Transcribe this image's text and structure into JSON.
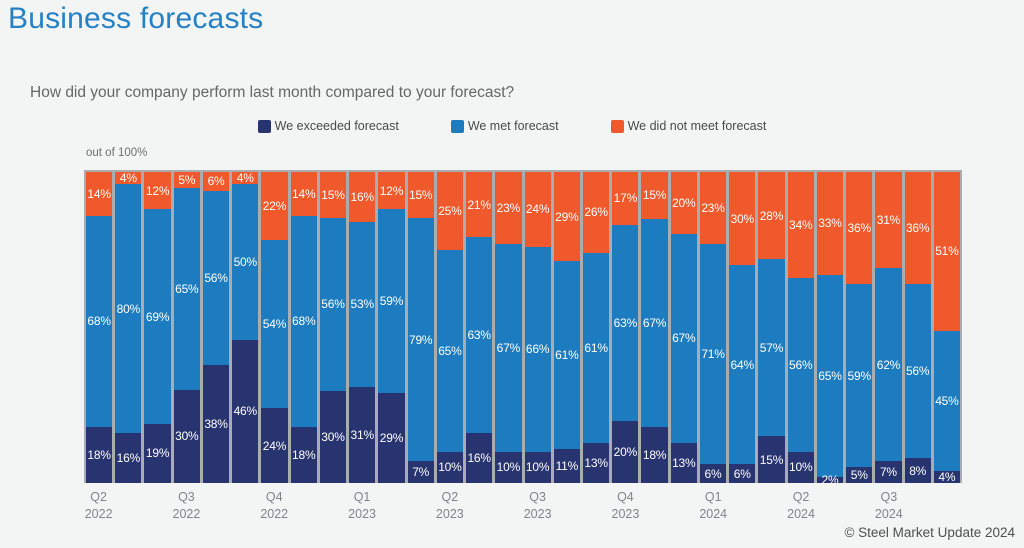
{
  "page": {
    "title": "Business forecasts",
    "question": "How did your company perform last month compared to your forecast?",
    "axis_note": "out of 100%",
    "copyright": "© Steel Market Update 2024"
  },
  "colors": {
    "title": "#2581c5",
    "exceeded": "#28346f",
    "met": "#1d7cbf",
    "not_met": "#f0592b",
    "bar_gap": "#aaadb0",
    "background": "#f3f4f4"
  },
  "chart_data": {
    "type": "bar",
    "stacked": true,
    "unit": "%",
    "title": "Business forecasts",
    "subtitle": "How did your company perform last month compared to your forecast?",
    "ylabel": "out of 100%",
    "ylim": [
      0,
      100
    ],
    "legend_position": "top",
    "grid": false,
    "bars_per_group": 3,
    "group_labels": [
      {
        "quarter": "Q2",
        "year": "2022"
      },
      {
        "quarter": "Q3",
        "year": "2022"
      },
      {
        "quarter": "Q4",
        "year": "2022"
      },
      {
        "quarter": "Q1",
        "year": "2023"
      },
      {
        "quarter": "Q2",
        "year": "2023"
      },
      {
        "quarter": "Q3",
        "year": "2023"
      },
      {
        "quarter": "Q4",
        "year": "2023"
      },
      {
        "quarter": "Q1",
        "year": "2024"
      },
      {
        "quarter": "Q2",
        "year": "2024"
      },
      {
        "quarter": "Q3",
        "year": "2024"
      }
    ],
    "series": [
      {
        "name": "We exceeded forecast",
        "color": "#28346f",
        "stack_position": "bottom",
        "values": [
          18,
          16,
          19,
          30,
          38,
          46,
          24,
          18,
          30,
          31,
          29,
          7,
          10,
          16,
          10,
          10,
          11,
          13,
          20,
          18,
          13,
          6,
          6,
          15,
          10,
          2,
          5,
          7,
          8,
          4
        ]
      },
      {
        "name": "We met forecast",
        "color": "#1d7cbf",
        "stack_position": "middle",
        "values": [
          68,
          80,
          69,
          65,
          56,
          50,
          54,
          68,
          56,
          53,
          59,
          79,
          65,
          63,
          67,
          66,
          61,
          61,
          63,
          67,
          67,
          71,
          64,
          57,
          56,
          65,
          59,
          62,
          56,
          45
        ]
      },
      {
        "name": "We did not meet forecast",
        "color": "#f0592b",
        "stack_position": "top",
        "values": [
          14,
          4,
          12,
          5,
          6,
          4,
          22,
          14,
          15,
          16,
          12,
          15,
          25,
          21,
          23,
          24,
          29,
          26,
          17,
          15,
          20,
          23,
          30,
          28,
          34,
          33,
          36,
          31,
          36,
          51
        ]
      }
    ]
  }
}
